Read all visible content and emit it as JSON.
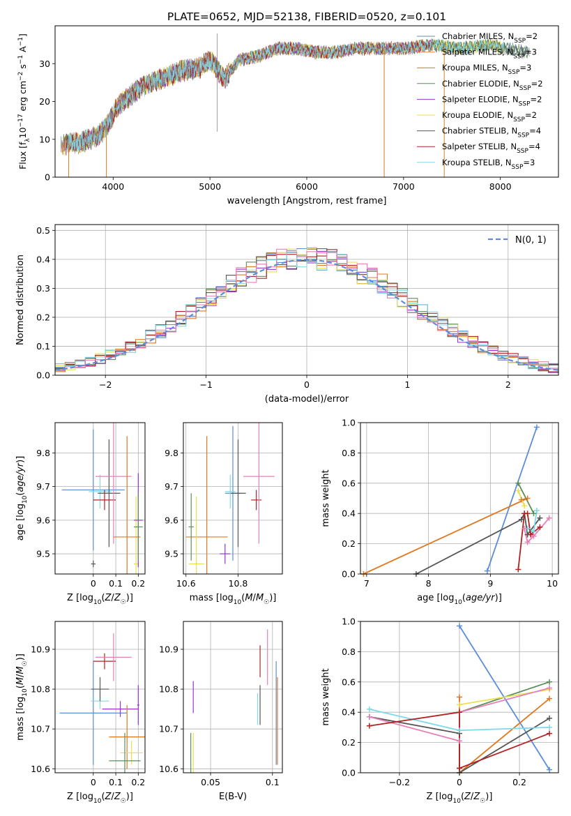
{
  "figure_title": "PLATE=0652, MJD=52138, FIBERID=0520, z=0.101",
  "chart_data": [
    {
      "id": "spectrum",
      "type": "line",
      "xlabel": "wavelength [Angstrom, rest frame]",
      "ylabel_parts": [
        "Flux [f",
        "λ",
        "10",
        "−17",
        " erg cm",
        "−2",
        " s",
        "−1",
        " A",
        "−1",
        "]"
      ],
      "xlim": [
        3400,
        8600
      ],
      "ylim": [
        0,
        40
      ],
      "xticks": [
        4000,
        5000,
        6000,
        7000,
        8000
      ],
      "yticks": [
        0,
        10,
        20,
        30
      ],
      "grid": false,
      "legend_position": "top-right",
      "legend": [
        {
          "label": "Chabrier MILES, N",
          "sub": "SSP",
          "suffix": "=2",
          "color": "#6a8fa8"
        },
        {
          "label": "Salpeter MILES, N",
          "sub": "SSP",
          "suffix": "=3",
          "color": "#f08a5d"
        },
        {
          "label": "Kroupa MILES, N",
          "sub": "SSP",
          "suffix": "=3",
          "color": "#b8860b"
        },
        {
          "label": "Chabrier ELODIE, N",
          "sub": "SSP",
          "suffix": "=2",
          "color": "#5a8f5a"
        },
        {
          "label": "Salpeter ELODIE, N",
          "sub": "SSP",
          "suffix": "=2",
          "color": "#9932cc"
        },
        {
          "label": "Kroupa ELODIE, N",
          "sub": "SSP",
          "suffix": "=2",
          "color": "#e8e050"
        },
        {
          "label": "Chabrier STELIB, N",
          "sub": "SSP",
          "suffix": "=4",
          "color": "#555555"
        },
        {
          "label": "Salpeter STELIB, N",
          "sub": "SSP",
          "suffix": "=4",
          "color": "#b22222"
        },
        {
          "label": "Kroupa STELIB, N",
          "sub": "SSP",
          "suffix": "=3",
          "color": "#7fd8e8"
        }
      ],
      "continuum": [
        [
          3450,
          8
        ],
        [
          3550,
          9
        ],
        [
          3650,
          9
        ],
        [
          3750,
          10
        ],
        [
          3850,
          11
        ],
        [
          3950,
          14
        ],
        [
          4050,
          19
        ],
        [
          4150,
          21
        ],
        [
          4300,
          24
        ],
        [
          4500,
          26
        ],
        [
          4700,
          28
        ],
        [
          4900,
          29
        ],
        [
          5000,
          31
        ],
        [
          5150,
          26
        ],
        [
          5300,
          31
        ],
        [
          5500,
          32
        ],
        [
          5700,
          34
        ],
        [
          5900,
          34
        ],
        [
          6100,
          33
        ],
        [
          6300,
          33
        ],
        [
          6500,
          34
        ],
        [
          6700,
          34
        ],
        [
          7000,
          34
        ],
        [
          7300,
          35
        ],
        [
          7600,
          34
        ],
        [
          7900,
          35
        ],
        [
          8050,
          34
        ],
        [
          8300,
          33
        ]
      ],
      "dropouts": [
        [
          3540,
          0
        ],
        [
          3930,
          0
        ],
        [
          6800,
          0
        ],
        [
          7420,
          0
        ]
      ],
      "spikes": [
        [
          5075,
          12
        ],
        [
          5075,
          38
        ]
      ]
    },
    {
      "id": "residual-histogram",
      "type": "histogram",
      "xlabel": "(data-model)/error",
      "ylabel": "Normed distribution",
      "xlim": [
        -2.5,
        2.5
      ],
      "ylim": [
        0,
        0.52
      ],
      "xticks": [
        -2,
        -1,
        0,
        1,
        2
      ],
      "yticks": [
        0.0,
        0.1,
        0.2,
        0.3,
        0.4,
        0.5
      ],
      "grid": true,
      "legend_position": "top-right",
      "reference_label": "N(0, 1)",
      "reference_color": "#5b8dd9",
      "bin_edges_start": -2.5,
      "bin_width": 0.1,
      "n_bins": 50,
      "series_colors": [
        "#5b8dd9",
        "#e07820",
        "#5a8f5a",
        "#9932cc",
        "#e8e050",
        "#555555",
        "#b22222",
        "#7fd8e8",
        "#e87fb8"
      ]
    },
    {
      "id": "age-vs-Z",
      "type": "scatter-errorbar",
      "xlabel": "Z [log10(Z/Z☉)]",
      "ylabel": "age  [log10(age/yr)]",
      "xlim": [
        -0.17,
        0.23
      ],
      "ylim": [
        9.44,
        9.89
      ],
      "xticks": [
        0.0,
        0.1,
        0.2
      ],
      "yticks": [
        9.5,
        9.6,
        9.7,
        9.8
      ],
      "grid": true,
      "points": [
        {
          "x": 0.0,
          "y": 9.69,
          "xerr": 0.14,
          "yerr": 0.18,
          "color": "#5b8dd9"
        },
        {
          "x": 0.19,
          "y": 9.47,
          "xerr": 0.01,
          "yerr": 0.2,
          "color": "#e8e050"
        },
        {
          "x": 0.03,
          "y": 9.685,
          "xerr": 0.05,
          "yerr": 0.05,
          "color": "#7fd8e8"
        },
        {
          "x": 0.07,
          "y": 9.68,
          "xerr": 0.05,
          "yerr": 0.16,
          "color": "#555555"
        },
        {
          "x": 0.05,
          "y": 9.66,
          "xerr": 0.05,
          "yerr": 0.03,
          "color": "#b22222"
        },
        {
          "x": 0.09,
          "y": 9.73,
          "xerr": 0.08,
          "yerr": 0.2,
          "color": "#e87fb8"
        },
        {
          "x": 0.15,
          "y": 9.55,
          "xerr": 0.06,
          "yerr": 0.3,
          "color": "#e07820"
        },
        {
          "x": 0.2,
          "y": 9.6,
          "xerr": 0.02,
          "yerr": 0.14,
          "color": "#9932cc"
        },
        {
          "x": 0.2,
          "y": 9.58,
          "xerr": 0.02,
          "yerr": 0.1,
          "color": "#5a8f5a"
        },
        {
          "x": 0.0,
          "y": 9.47,
          "xerr": 0.01,
          "yerr": 0.01,
          "color": "#555555"
        }
      ]
    },
    {
      "id": "age-vs-mass",
      "type": "scatter-errorbar",
      "xlabel": "mass [log10(M/M☉)]",
      "ylabel": "",
      "xlim": [
        10.59,
        10.97
      ],
      "ylim": [
        9.44,
        9.89
      ],
      "xticks": [
        10.6,
        10.8
      ],
      "yticks": [
        9.5,
        9.6,
        9.7,
        9.8
      ],
      "grid": true,
      "points": [
        {
          "x": 10.78,
          "y": 9.68,
          "xerr": 0.03,
          "yerr": 0.2,
          "color": "#5b8dd9"
        },
        {
          "x": 10.68,
          "y": 9.55,
          "xerr": 0.08,
          "yerr": 0.3,
          "color": "#e07820"
        },
        {
          "x": 10.62,
          "y": 9.58,
          "xerr": 0.01,
          "yerr": 0.1,
          "color": "#5a8f5a"
        },
        {
          "x": 10.75,
          "y": 9.5,
          "xerr": 0.02,
          "yerr": 0.03,
          "color": "#9932cc"
        },
        {
          "x": 10.64,
          "y": 9.47,
          "xerr": 0.03,
          "yerr": 0.2,
          "color": "#e8e050"
        },
        {
          "x": 10.8,
          "y": 9.68,
          "xerr": 0.03,
          "yerr": 0.16,
          "color": "#555555"
        },
        {
          "x": 10.87,
          "y": 9.66,
          "xerr": 0.02,
          "yerr": 0.03,
          "color": "#b22222"
        },
        {
          "x": 10.77,
          "y": 9.685,
          "xerr": 0.02,
          "yerr": 0.05,
          "color": "#7fd8e8"
        },
        {
          "x": 10.88,
          "y": 9.73,
          "xerr": 0.06,
          "yerr": 0.2,
          "color": "#e87fb8"
        }
      ]
    },
    {
      "id": "mass-weight-vs-age",
      "type": "line",
      "xlabel": "age  [log10(age/yr)]",
      "ylabel": "mass weight",
      "xlim": [
        6.9,
        10.1
      ],
      "ylim": [
        0.0,
        1.0
      ],
      "xticks": [
        7,
        8,
        9,
        10
      ],
      "yticks": [
        0.0,
        0.2,
        0.4,
        0.6,
        0.8,
        1.0
      ],
      "grid": true,
      "series": [
        {
          "color": "#5b8dd9",
          "x": [
            8.95,
            9.75
          ],
          "y": [
            0.02,
            0.97
          ]
        },
        {
          "color": "#e07820",
          "x": [
            6.95,
            9.6,
            9.5
          ],
          "y": [
            0.0,
            0.5,
            0.49
          ]
        },
        {
          "color": "#555555",
          "x": [
            7.8,
            9.5,
            9.55,
            9.6,
            9.8
          ],
          "y": [
            0.0,
            0.36,
            0.4,
            0.26,
            0.37
          ]
        },
        {
          "color": "#5a8f5a",
          "x": [
            9.45,
            9.7
          ],
          "y": [
            0.6,
            0.4
          ]
        },
        {
          "color": "#e8e050",
          "x": [
            9.45,
            9.55
          ],
          "y": [
            0.55,
            0.45
          ]
        },
        {
          "color": "#7fd8e8",
          "x": [
            9.6,
            9.7,
            9.75
          ],
          "y": [
            0.3,
            0.28,
            0.42
          ]
        },
        {
          "color": "#e87fb8",
          "x": [
            9.55,
            9.6,
            9.7,
            9.95
          ],
          "y": [
            0.3,
            0.21,
            0.25,
            0.37
          ]
        },
        {
          "color": "#b22222",
          "x": [
            9.45,
            9.55,
            9.6,
            9.65,
            9.8
          ],
          "y": [
            0.03,
            0.4,
            0.4,
            0.26,
            0.31
          ]
        }
      ]
    },
    {
      "id": "mass-vs-Z",
      "type": "scatter-errorbar",
      "xlabel": "Z [log10(Z/Z☉)]",
      "ylabel": "mass [log10(M/M☉)]",
      "xlim": [
        -0.17,
        0.23
      ],
      "ylim": [
        10.59,
        10.97
      ],
      "xticks": [
        0.0,
        0.1,
        0.2
      ],
      "yticks": [
        10.6,
        10.7,
        10.8,
        10.9
      ],
      "grid": true,
      "points": [
        {
          "x": 0.0,
          "y": 10.74,
          "xerr": 0.15,
          "yerr": 0.13,
          "color": "#5b8dd9"
        },
        {
          "x": 0.05,
          "y": 10.87,
          "xerr": 0.05,
          "yerr": 0.02,
          "color": "#b22222"
        },
        {
          "x": 0.09,
          "y": 10.88,
          "xerr": 0.08,
          "yerr": 0.06,
          "color": "#e87fb8"
        },
        {
          "x": 0.03,
          "y": 10.77,
          "xerr": 0.04,
          "yerr": 0.02,
          "color": "#7fd8e8"
        },
        {
          "x": 0.03,
          "y": 10.8,
          "xerr": 0.04,
          "yerr": 0.03,
          "color": "#555555"
        },
        {
          "x": 0.12,
          "y": 10.75,
          "xerr": 0.08,
          "yerr": 0.02,
          "color": "#9932cc"
        },
        {
          "x": 0.15,
          "y": 10.68,
          "xerr": 0.08,
          "yerr": 0.08,
          "color": "#e07820"
        },
        {
          "x": 0.17,
          "y": 10.64,
          "xerr": 0.05,
          "yerr": 0.03,
          "color": "#e8e050"
        },
        {
          "x": 0.14,
          "y": 10.62,
          "xerr": 0.07,
          "yerr": 0.07,
          "color": "#5a8f5a"
        },
        {
          "x": 0.2,
          "y": 10.76,
          "xerr": 0.005,
          "yerr": 0.05,
          "color": "#9932cc"
        }
      ]
    },
    {
      "id": "mass-vs-EBV",
      "type": "scatter-errorbar",
      "xlabel": "E(B-V)",
      "ylabel": "",
      "xlim": [
        0.028,
        0.108
      ],
      "ylim": [
        10.59,
        10.97
      ],
      "xticks": [
        0.05,
        0.1
      ],
      "yticks": [
        10.6,
        10.7,
        10.8,
        10.9
      ],
      "grid": true,
      "points": [
        {
          "x": 0.034,
          "y": 10.64,
          "xerr": 0.0,
          "yerr": 0.05,
          "color": "#5a8f5a"
        },
        {
          "x": 0.036,
          "y": 10.64,
          "xerr": 0.0,
          "yerr": 0.05,
          "color": "#e8e050"
        },
        {
          "x": 0.036,
          "y": 10.78,
          "xerr": 0.0,
          "yerr": 0.04,
          "color": "#9932cc"
        },
        {
          "x": 0.088,
          "y": 10.75,
          "xerr": 0.0,
          "yerr": 0.04,
          "color": "#7fd8e8"
        },
        {
          "x": 0.09,
          "y": 10.76,
          "xerr": 0.0,
          "yerr": 0.05,
          "color": "#555555"
        },
        {
          "x": 0.09,
          "y": 10.87,
          "xerr": 0.0,
          "yerr": 0.04,
          "color": "#b22222"
        },
        {
          "x": 0.096,
          "y": 10.88,
          "xerr": 0.0,
          "yerr": 0.07,
          "color": "#e87fb8"
        },
        {
          "x": 0.103,
          "y": 10.74,
          "xerr": 0.0,
          "yerr": 0.13,
          "color": "#5b8dd9"
        },
        {
          "x": 0.104,
          "y": 10.72,
          "xerr": 0.0,
          "yerr": 0.11,
          "color": "#e07820"
        }
      ]
    },
    {
      "id": "mass-weight-vs-Z",
      "type": "line",
      "xlabel": "Z [log10(Z/Z☉)]",
      "ylabel": "mass weight",
      "xlim": [
        -0.33,
        0.33
      ],
      "ylim": [
        0.0,
        1.0
      ],
      "xticks": [
        -0.2,
        0.0,
        0.2
      ],
      "yticks": [
        0.0,
        0.2,
        0.4,
        0.6,
        0.8,
        1.0
      ],
      "grid": true,
      "series": [
        {
          "color": "#5b8dd9",
          "x": [
            0.0,
            0.3
          ],
          "y": [
            0.97,
            0.02
          ]
        },
        {
          "color": "#e07820",
          "x": [
            0.0,
            0.0,
            0.3
          ],
          "y": [
            0.5,
            0.0,
            0.49
          ]
        },
        {
          "color": "#5a8f5a",
          "x": [
            0.0,
            0.3
          ],
          "y": [
            0.4,
            0.6
          ]
        },
        {
          "color": "#e8e050",
          "x": [
            0.0,
            0.3
          ],
          "y": [
            0.45,
            0.55
          ]
        },
        {
          "color": "#555555",
          "x": [
            -0.3,
            0.0,
            0.0,
            0.3
          ],
          "y": [
            0.37,
            0.26,
            0.0,
            0.36
          ]
        },
        {
          "color": "#7fd8e8",
          "x": [
            -0.3,
            0.0,
            0.3
          ],
          "y": [
            0.42,
            0.28,
            0.3
          ]
        },
        {
          "color": "#e87fb8",
          "x": [
            -0.3,
            0.0,
            0.0,
            0.3
          ],
          "y": [
            0.37,
            0.21,
            0.4,
            0.56
          ]
        },
        {
          "color": "#b22222",
          "x": [
            -0.3,
            0.0,
            0.0,
            0.0,
            0.3
          ],
          "y": [
            0.31,
            0.4,
            0.03,
            0.03,
            0.26
          ]
        }
      ]
    }
  ]
}
